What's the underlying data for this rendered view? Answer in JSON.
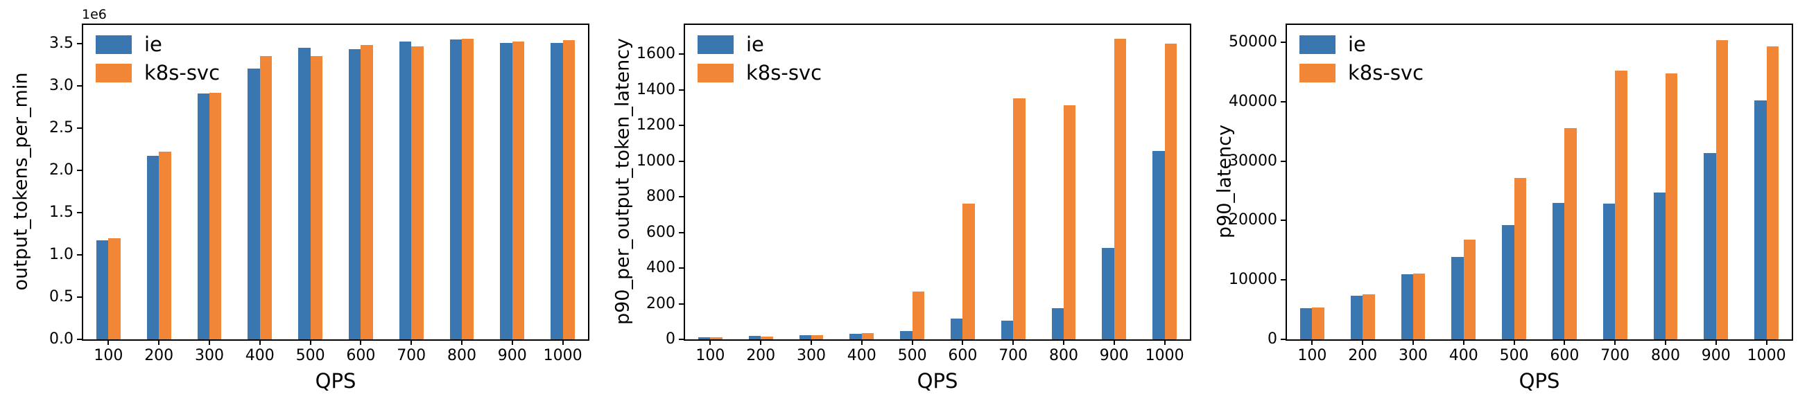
{
  "figure": {
    "background": "#ffffff",
    "axis_color": "#000000"
  },
  "colors": {
    "ie": "#3a76af",
    "k8s_svc": "#f08636"
  },
  "chart_data": [
    {
      "type": "bar",
      "title": "",
      "xlabel": "QPS",
      "ylabel": "output_tokens_per_min",
      "offset_text": "1e6",
      "grid": false,
      "legend_position": "upper left",
      "categories": [
        "100",
        "200",
        "300",
        "400",
        "500",
        "600",
        "700",
        "800",
        "900",
        "1000"
      ],
      "ylim": [
        0,
        3720000
      ],
      "ytick_values": [
        0,
        500000,
        1000000,
        1500000,
        2000000,
        2500000,
        3000000,
        3500000
      ],
      "ytick_labels": [
        "0.0",
        "0.5",
        "1.0",
        "1.5",
        "2.0",
        "2.5",
        "3.0",
        "3.5"
      ],
      "series": [
        {
          "name": "ie",
          "color": "#3a76af",
          "values": [
            1170000,
            2170000,
            2910000,
            3200000,
            3450000,
            3430000,
            3520000,
            3545000,
            3510000,
            3505000
          ]
        },
        {
          "name": "k8s-svc",
          "color": "#f08636",
          "values": [
            1195000,
            2220000,
            2920000,
            3350000,
            3350000,
            3485000,
            3470000,
            3555000,
            3525000,
            3540000
          ]
        }
      ]
    },
    {
      "type": "bar",
      "title": "",
      "xlabel": "QPS",
      "ylabel": "p90_per_output_token_latency",
      "offset_text": "",
      "grid": false,
      "legend_position": "upper left",
      "categories": [
        "100",
        "200",
        "300",
        "400",
        "500",
        "600",
        "700",
        "800",
        "900",
        "1000"
      ],
      "ylim": [
        0,
        1765
      ],
      "ytick_values": [
        0,
        200,
        400,
        600,
        800,
        1000,
        1200,
        1400,
        1600
      ],
      "ytick_labels": [
        "0",
        "200",
        "400",
        "600",
        "800",
        "1000",
        "1200",
        "1400",
        "1600"
      ],
      "series": [
        {
          "name": "ie",
          "color": "#3a76af",
          "values": [
            10,
            18,
            23,
            33,
            48,
            116,
            106,
            176,
            514,
            1057
          ]
        },
        {
          "name": "k8s-svc",
          "color": "#f08636",
          "values": [
            11,
            17,
            22,
            36,
            268,
            762,
            1354,
            1313,
            1686,
            1661
          ]
        }
      ]
    },
    {
      "type": "bar",
      "title": "",
      "xlabel": "QPS",
      "ylabel": "p90_latency",
      "offset_text": "",
      "grid": false,
      "legend_position": "upper left",
      "categories": [
        "100",
        "200",
        "300",
        "400",
        "500",
        "600",
        "700",
        "800",
        "900",
        "1000"
      ],
      "ylim": [
        0,
        52900
      ],
      "ytick_values": [
        0,
        10000,
        20000,
        30000,
        40000,
        50000
      ],
      "ytick_labels": [
        "0",
        "10000",
        "20000",
        "30000",
        "40000",
        "50000"
      ],
      "series": [
        {
          "name": "ie",
          "color": "#3a76af",
          "values": [
            5300,
            7300,
            10900,
            13900,
            19200,
            23000,
            22800,
            24700,
            31300,
            40200
          ]
        },
        {
          "name": "k8s-svc",
          "color": "#f08636",
          "values": [
            5400,
            7600,
            11100,
            16800,
            27100,
            35500,
            45200,
            44700,
            50300,
            49300
          ]
        }
      ]
    }
  ]
}
